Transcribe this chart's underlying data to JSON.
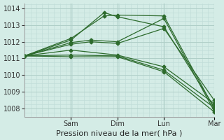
{
  "xlabel": "Pression niveau de la mer( hPa )",
  "bg_color": "#d4ece6",
  "plot_bg_color": "#d4ece6",
  "grid_color_major": "#b0cfc8",
  "grid_color_minor": "#c0ddd8",
  "line_color": "#2d6b2d",
  "ylim": [
    1007.5,
    1014.3
  ],
  "yticks": [
    1008,
    1009,
    1010,
    1011,
    1012,
    1013,
    1014
  ],
  "xlim": [
    0,
    1.0
  ],
  "day_positions": [
    0.245,
    0.49,
    0.735,
    1.0
  ],
  "day_labels": [
    "Sam",
    "Dim",
    "Lun",
    "Mar"
  ],
  "xlabel_fontsize": 8,
  "tick_fontsize": 7,
  "lines": [
    {
      "x": [
        0.0,
        0.245,
        0.42,
        0.49,
        0.735,
        1.0
      ],
      "y": [
        1011.15,
        1012.2,
        1013.55,
        1013.6,
        1013.55,
        1008.0
      ]
    },
    {
      "x": [
        0.0,
        0.245,
        0.42,
        0.49,
        0.735,
        1.0
      ],
      "y": [
        1011.15,
        1012.1,
        1013.75,
        1013.5,
        1012.9,
        1008.1
      ]
    },
    {
      "x": [
        0.0,
        0.245,
        0.35,
        0.49,
        0.735,
        1.0
      ],
      "y": [
        1011.15,
        1011.95,
        1012.1,
        1012.0,
        1013.4,
        1007.85
      ]
    },
    {
      "x": [
        0.0,
        0.245,
        0.35,
        0.49,
        0.735,
        1.0
      ],
      "y": [
        1011.15,
        1011.85,
        1012.0,
        1011.9,
        1012.8,
        1008.5
      ]
    },
    {
      "x": [
        0.0,
        0.245,
        0.49,
        0.735,
        1.0
      ],
      "y": [
        1011.15,
        1011.5,
        1011.2,
        1010.5,
        1008.3
      ]
    },
    {
      "x": [
        0.0,
        0.245,
        0.49,
        0.735,
        1.0
      ],
      "y": [
        1011.15,
        1011.2,
        1011.15,
        1010.3,
        1008.05
      ]
    },
    {
      "x": [
        0.0,
        0.245,
        0.49,
        0.735,
        1.0
      ],
      "y": [
        1011.15,
        1011.1,
        1011.1,
        1010.2,
        1007.8
      ]
    }
  ]
}
